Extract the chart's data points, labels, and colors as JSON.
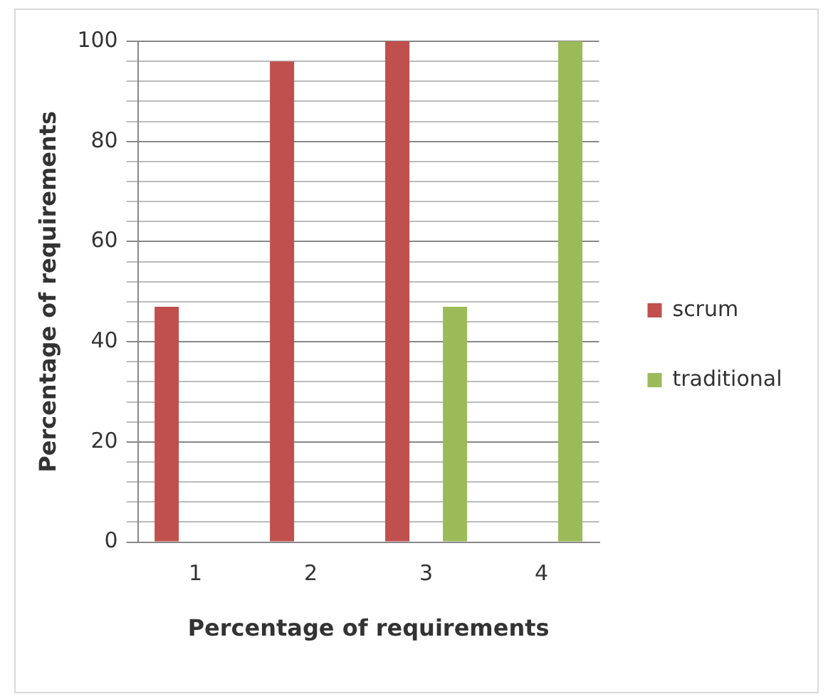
{
  "chart_data": {
    "type": "bar",
    "xlabel": "Percentage of requirements",
    "ylabel": "Percentage of requirements",
    "categories": [
      "1",
      "2",
      "3",
      "4"
    ],
    "series": [
      {
        "name": "scrum",
        "color": "#c0504d",
        "values": [
          47,
          96,
          100,
          0
        ]
      },
      {
        "name": "traditional",
        "color": "#9bbb59",
        "values": [
          0,
          0,
          47,
          100
        ]
      }
    ],
    "ylim": [
      0,
      100
    ],
    "yticks": [
      0,
      {
        "value": 4,
        "label": null
      },
      {
        "value": 8,
        "label": null
      },
      {
        "value": 12,
        "label": null
      },
      {
        "value": 16,
        "label": null
      },
      20,
      {
        "value": 24,
        "label": null
      },
      {
        "value": 28,
        "label": null
      },
      {
        "value": 32,
        "label": null
      },
      {
        "value": 36,
        "label": null
      },
      40,
      {
        "value": 44,
        "label": null
      },
      {
        "value": 48,
        "label": null
      },
      {
        "value": 52,
        "label": null
      },
      {
        "value": 56,
        "label": null
      },
      60,
      {
        "value": 64,
        "label": null
      },
      {
        "value": 68,
        "label": null
      },
      {
        "value": 72,
        "label": null
      },
      {
        "value": 76,
        "label": null
      },
      80,
      {
        "value": 84,
        "label": null
      },
      {
        "value": 88,
        "label": null
      },
      {
        "value": 92,
        "label": null
      },
      {
        "value": 96,
        "label": null
      },
      100
    ],
    "grid": "y",
    "legend": "right"
  }
}
